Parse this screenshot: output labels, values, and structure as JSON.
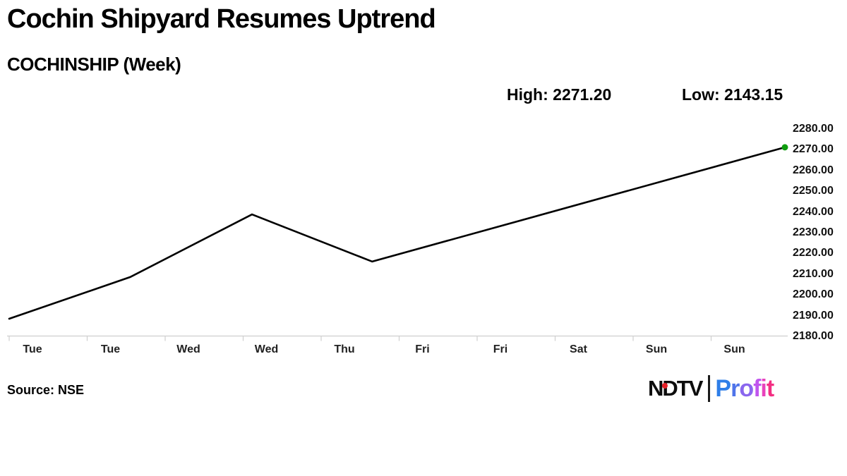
{
  "header": {
    "title": "Cochin Shipyard Resumes Uptrend",
    "subtitle": "COCHINSHIP (Week)",
    "high_label": "High: 2271.20",
    "low_label": "Low: 2143.15"
  },
  "footer": {
    "source": "Source: NSE",
    "logo": {
      "ndtv": "NDTV",
      "profit": "Profit",
      "red_dot_color": "#e52128",
      "separator_color": "#1a1a1a",
      "profit_letter_colors": [
        "#2e7ee8",
        "#4f74ea",
        "#8a66ee",
        "#c055ee",
        "#e843bc",
        "#f32f83"
      ]
    }
  },
  "chart_data": {
    "type": "line",
    "title": "Cochin Shipyard Resumes Uptrend",
    "subtitle": "COCHINSHIP (Week)",
    "instrument": "COCHINSHIP",
    "timeframe": "Week",
    "high": 2271.2,
    "low": 2143.15,
    "x_tick_labels": [
      "Tue",
      "Tue",
      "Wed",
      "Wed",
      "Thu",
      "Fri",
      "Fri",
      "Sat",
      "Sun",
      "Sun"
    ],
    "y_tick_labels": [
      "2280.00",
      "2270.00",
      "2260.00",
      "2250.00",
      "2240.00",
      "2230.00",
      "2220.00",
      "2210.00",
      "2200.00",
      "2190.00",
      "2180.00"
    ],
    "ylim": [
      2180,
      2283
    ],
    "grid": false,
    "legend": "none",
    "line_color": "#000000",
    "axis_color": "#cfcfcf",
    "last_point_marker_color": "#0f9d0f",
    "series": [
      {
        "name": "COCHINSHIP price",
        "points": [
          {
            "x": 0.0,
            "price": 2188.5
          },
          {
            "x": 0.156,
            "price": 2208.6
          },
          {
            "x": 0.313,
            "price": 2238.8
          },
          {
            "x": 0.468,
            "price": 2216.1
          },
          {
            "x": 1.0,
            "price": 2271.2
          }
        ]
      }
    ]
  }
}
